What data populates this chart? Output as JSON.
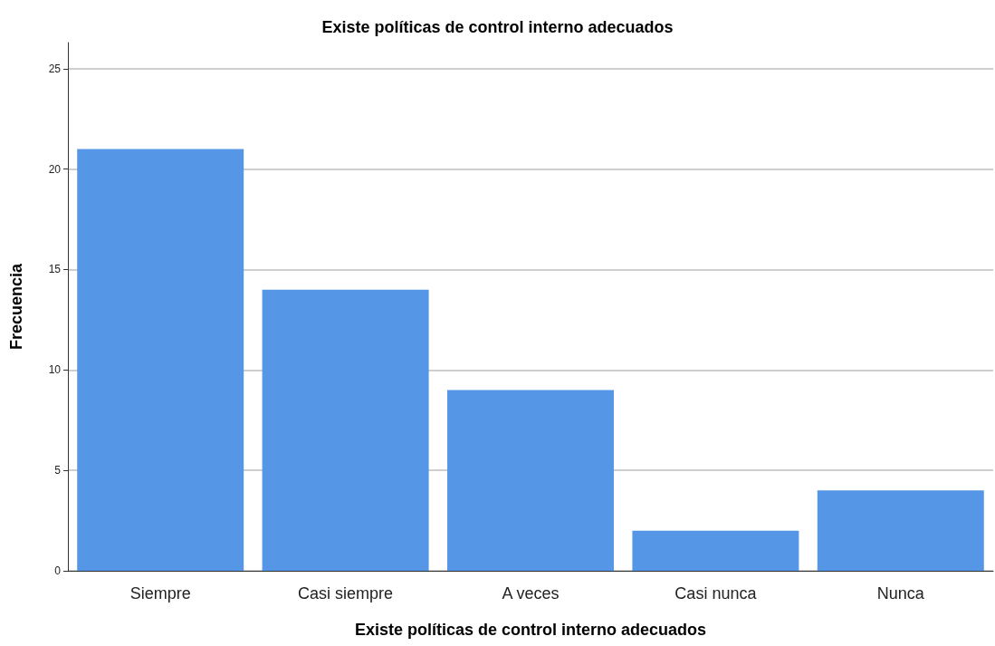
{
  "chart_data": {
    "type": "bar",
    "title": "Existe políticas de control interno adecuados",
    "xlabel": "Existe políticas de control interno adecuados",
    "ylabel": "Frecuencia",
    "categories": [
      "Siempre",
      "Casi siempre",
      "A veces",
      "Casi nunca",
      "Nunca"
    ],
    "values": [
      21,
      14,
      9,
      2,
      4
    ],
    "color": "#5596e6",
    "ylim": [
      0,
      26.3
    ],
    "yticks": [
      0,
      5,
      10,
      15,
      20,
      25
    ],
    "grid": "y"
  }
}
